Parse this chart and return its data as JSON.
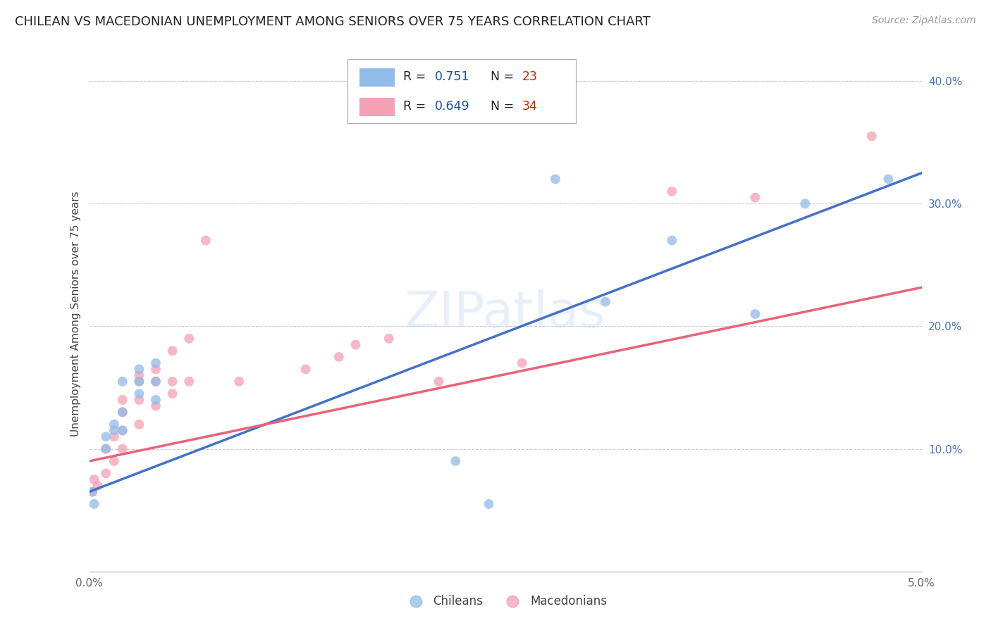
{
  "title": "CHILEAN VS MACEDONIAN UNEMPLOYMENT AMONG SENIORS OVER 75 YEARS CORRELATION CHART",
  "source": "Source: ZipAtlas.com",
  "ylabel": "Unemployment Among Seniors over 75 years",
  "xlabel_chileans": "Chileans",
  "xlabel_macedonians": "Macedonians",
  "watermark": "ZIPatlas",
  "xlim": [
    0.0,
    0.05
  ],
  "ylim": [
    0.0,
    0.42
  ],
  "xticks": [
    0.0,
    0.01,
    0.02,
    0.03,
    0.04,
    0.05
  ],
  "xticklabels": [
    "0.0%",
    "",
    "",
    "",
    "",
    "5.0%"
  ],
  "yticks_right": [
    0.1,
    0.2,
    0.3,
    0.4
  ],
  "yticklabels_right": [
    "10.0%",
    "20.0%",
    "30.0%",
    "40.0%"
  ],
  "r_chilean": 0.751,
  "n_chilean": 23,
  "r_macedonian": 0.649,
  "n_macedonian": 34,
  "color_chilean": "#92bce8",
  "color_macedonian": "#f4a0b5",
  "color_line_chilean": "#4472c4",
  "color_line_macedonian": "#e8637a",
  "scatter_alpha": 0.75,
  "scatter_size": 100,
  "chilean_x": [
    0.0002,
    0.0003,
    0.001,
    0.001,
    0.0015,
    0.0015,
    0.002,
    0.002,
    0.002,
    0.003,
    0.003,
    0.003,
    0.004,
    0.004,
    0.004,
    0.022,
    0.024,
    0.028,
    0.031,
    0.035,
    0.04,
    0.043,
    0.048
  ],
  "chilean_y": [
    0.065,
    0.055,
    0.11,
    0.1,
    0.115,
    0.12,
    0.115,
    0.13,
    0.155,
    0.145,
    0.155,
    0.165,
    0.14,
    0.155,
    0.17,
    0.09,
    0.055,
    0.32,
    0.22,
    0.27,
    0.21,
    0.3,
    0.32
  ],
  "macedonian_x": [
    0.0002,
    0.0003,
    0.0005,
    0.001,
    0.001,
    0.0015,
    0.0015,
    0.002,
    0.002,
    0.002,
    0.002,
    0.003,
    0.003,
    0.003,
    0.003,
    0.004,
    0.004,
    0.004,
    0.005,
    0.005,
    0.005,
    0.006,
    0.006,
    0.007,
    0.009,
    0.013,
    0.015,
    0.016,
    0.018,
    0.021,
    0.026,
    0.035,
    0.04,
    0.047
  ],
  "macedonian_y": [
    0.065,
    0.075,
    0.07,
    0.08,
    0.1,
    0.09,
    0.11,
    0.1,
    0.115,
    0.13,
    0.14,
    0.12,
    0.14,
    0.155,
    0.16,
    0.135,
    0.155,
    0.165,
    0.145,
    0.155,
    0.18,
    0.155,
    0.19,
    0.27,
    0.155,
    0.165,
    0.175,
    0.185,
    0.19,
    0.155,
    0.17,
    0.31,
    0.305,
    0.355
  ],
  "background_color": "#ffffff",
  "grid_color": "#cccccc",
  "title_fontsize": 13,
  "source_fontsize": 10,
  "legend_r_color": "#1a5296",
  "legend_n_color": "#cc2200"
}
